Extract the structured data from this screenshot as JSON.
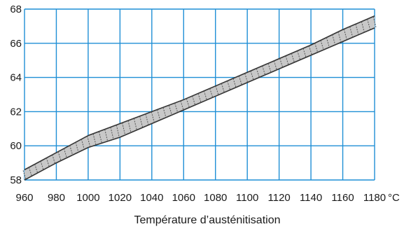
{
  "chart_data": {
    "type": "area",
    "title": "",
    "xlabel": "Température d’austénitisation",
    "x_unit": "°C",
    "ylabel": "",
    "xlim": [
      960,
      1180
    ],
    "ylim": [
      58,
      68
    ],
    "x_ticks": [
      960,
      980,
      1000,
      1020,
      1040,
      1060,
      1080,
      1100,
      1120,
      1140,
      1160,
      1180
    ],
    "y_ticks": [
      58,
      60,
      62,
      64,
      66,
      68
    ],
    "grid": true,
    "colors": {
      "grid": "#1f8fd6",
      "band_fill": "#c8c8c8",
      "band_edge": "#333333"
    },
    "series": [
      {
        "x": [
          960,
          980,
          1000,
          1020,
          1040,
          1060,
          1080,
          1100,
          1120,
          1140,
          1160,
          1180
        ],
        "upper": [
          58.6,
          59.6,
          60.6,
          61.3,
          62.0,
          62.7,
          63.5,
          64.3,
          65.1,
          65.9,
          66.8,
          67.6
        ],
        "lower": [
          58.0,
          59.0,
          59.9,
          60.5,
          61.3,
          62.1,
          62.9,
          63.7,
          64.5,
          65.3,
          66.1,
          66.9
        ]
      }
    ]
  }
}
